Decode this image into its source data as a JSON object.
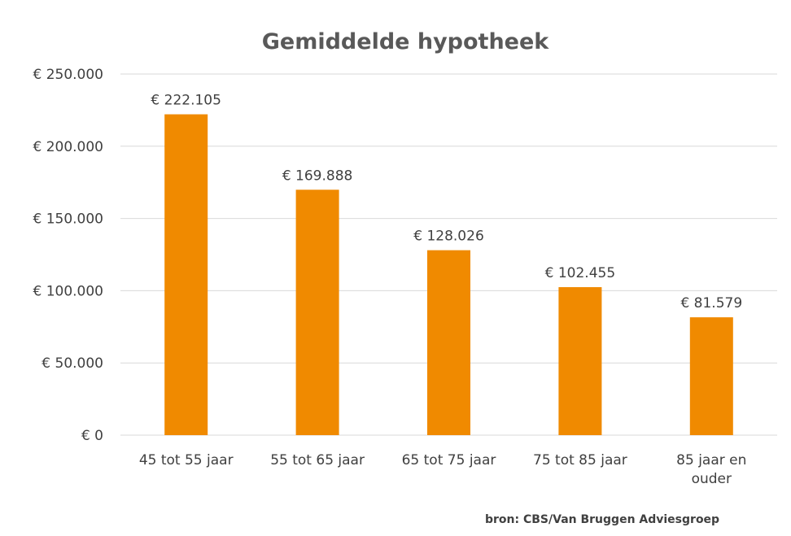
{
  "chart_data": {
    "type": "bar",
    "title": "Gemiddelde hypotheek",
    "categories": [
      [
        "45 tot 55 jaar"
      ],
      [
        "55 tot 65 jaar"
      ],
      [
        "65 tot 75 jaar"
      ],
      [
        "75 tot 85 jaar"
      ],
      [
        "85 jaar en",
        "ouder"
      ]
    ],
    "values": [
      222105,
      169888,
      128026,
      102455,
      81579
    ],
    "data_labels": [
      "€ 222.105",
      "€ 169.888",
      "€ 128.026",
      "€ 102.455",
      "€ 81.579"
    ],
    "ylim": [
      0,
      250000
    ],
    "yticks": [
      0,
      50000,
      100000,
      150000,
      200000,
      250000
    ],
    "ytick_labels": [
      "€ 0",
      "€ 50.000",
      "€ 100.000",
      "€ 150.000",
      "€ 200.000",
      "€ 250.000"
    ],
    "grid": true,
    "bar_color": "#f08a00",
    "gridline_color": "#d9d9d9"
  },
  "source_note": "bron: CBS/Van Bruggen Adviesgroep"
}
